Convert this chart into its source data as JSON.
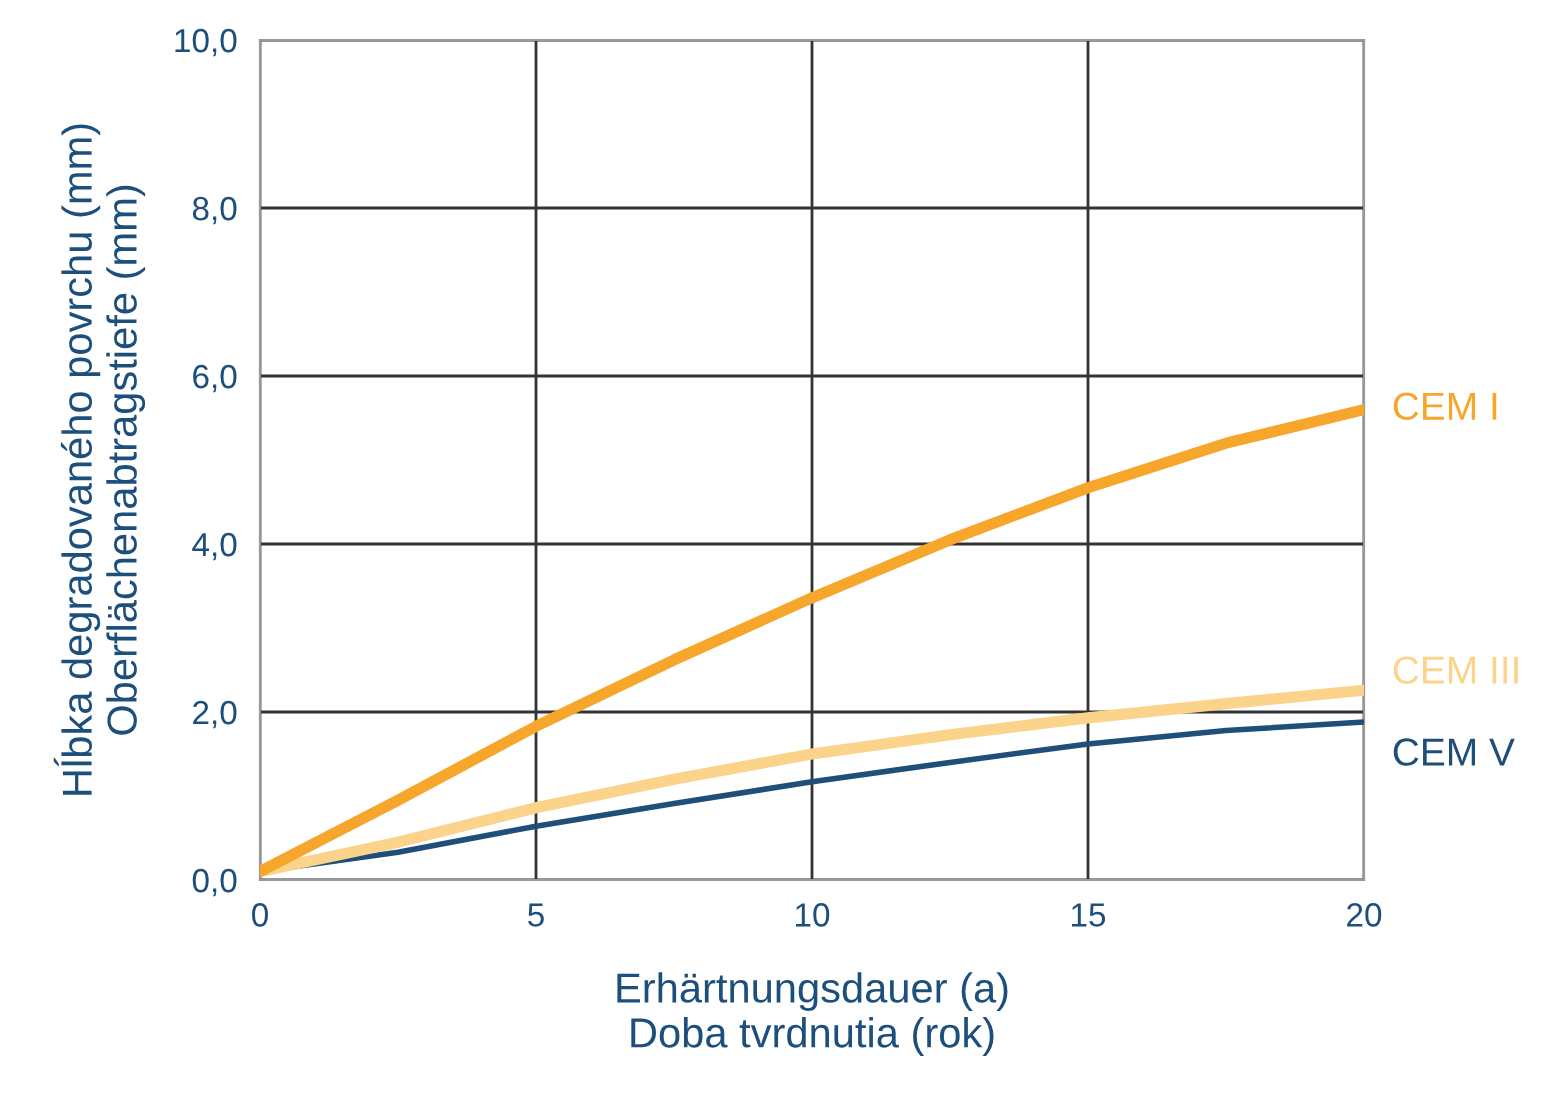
{
  "chart_data": {
    "type": "line",
    "xlabel": "Erhärtnungsdauer (a)\nDoba tvrdnutia (rok)",
    "ylabel": "Hĺbka degradovaného povrchu (mm)\nOberflächenabtragstiefe (mm)",
    "x": [
      0,
      2.5,
      5,
      7.5,
      10,
      12.5,
      15,
      17.5,
      20
    ],
    "series": [
      {
        "name": "CEM I",
        "color": "#f6a62a",
        "values": [
          0.1,
          0.95,
          1.83,
          2.62,
          3.36,
          4.05,
          4.67,
          5.2,
          5.6
        ]
      },
      {
        "name": "CEM III",
        "color": "#fbd38a",
        "values": [
          0.1,
          0.45,
          0.86,
          1.2,
          1.5,
          1.73,
          1.93,
          2.1,
          2.26
        ]
      },
      {
        "name": "CEM V",
        "color": "#1f4e79",
        "values": [
          0.1,
          0.33,
          0.64,
          0.91,
          1.17,
          1.4,
          1.62,
          1.78,
          1.88
        ]
      }
    ],
    "xlim": [
      0,
      20
    ],
    "xticks": [
      0,
      5,
      10,
      15,
      20
    ],
    "ylim": [
      0,
      10
    ],
    "yticks": [
      {
        "value": 0,
        "label": "0,0"
      },
      {
        "value": 2,
        "label": "2,0"
      },
      {
        "value": 4,
        "label": "4,0"
      },
      {
        "value": 6,
        "label": "6,0"
      },
      {
        "value": 8,
        "label": "8,0"
      },
      {
        "value": 10,
        "label": "10,0"
      }
    ],
    "grid": true,
    "legend": false,
    "line_style": "solid",
    "marker": "none"
  }
}
